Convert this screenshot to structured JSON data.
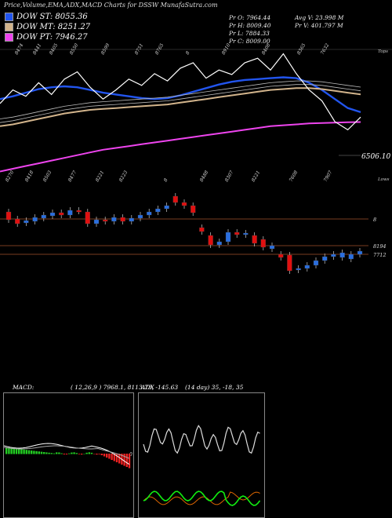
{
  "header": {
    "title": "Price,Volume,EMA,ADX,MACD Charts for DSSW MunafaSutra.com"
  },
  "legend": [
    {
      "label": "DOW ST: 8055.36",
      "color": "#2255ee"
    },
    {
      "label": "DOW MT: 8251.27",
      "color": "#d2b48c"
    },
    {
      "label": "DOW PT: 7946.27",
      "color": "#ee44ee"
    }
  ],
  "stats": {
    "pr_o": "Pr   O: 7964.44",
    "pr_h": "Pr   H: 8009.40",
    "pr_l": "Pr   L: 7884.33",
    "pr_c": "Pr   C: 8009.00",
    "avg_v": "Avg V: 23.998  M",
    "pr_v": "Pr   V: 401.797  M"
  },
  "top_labels": [
    "8474",
    "8441",
    "8405",
    "8550",
    "8599",
    "8751",
    "8765",
    "8",
    "8910",
    "8408",
    "8365",
    "7632"
  ],
  "lower_labels": [
    "8270",
    "8418",
    "8503",
    "8477",
    "8221",
    "8223",
    "8",
    "8488",
    "8307",
    "8221",
    "7608",
    "7907"
  ],
  "top_axis_label": "Tops",
  "lower_axis_label": "Lows",
  "price_label": "6506.10",
  "candle_levels": [
    "8",
    "8194",
    "7712"
  ],
  "chart_data": {
    "type": "line",
    "title": "Price,Volume,EMA,ADX,MACD Charts for DSSW MunafaSutra.com",
    "series": [
      {
        "name": "DOW ST: 8055.36",
        "color": "#2255ee",
        "values": [
          8200,
          8230,
          8270,
          8310,
          8330,
          8340,
          8330,
          8300,
          8270,
          8250,
          8230,
          8210,
          8200,
          8210,
          8240,
          8280,
          8320,
          8360,
          8390,
          8410,
          8420,
          8430,
          8440,
          8430,
          8380,
          8300,
          8200,
          8100,
          8055
        ]
      },
      {
        "name": "DOW MT: 8251.27",
        "color": "#d2b48c",
        "values": [
          7900,
          7920,
          7950,
          7980,
          8010,
          8040,
          8060,
          8080,
          8090,
          8100,
          8110,
          8120,
          8130,
          8140,
          8160,
          8180,
          8200,
          8220,
          8240,
          8260,
          8280,
          8300,
          8310,
          8320,
          8320,
          8310,
          8290,
          8270,
          8251
        ]
      },
      {
        "name": "DOW PT: 7946.27",
        "color": "#ee44ee",
        "values": [
          7400,
          7430,
          7460,
          7490,
          7520,
          7550,
          7580,
          7610,
          7640,
          7660,
          7680,
          7700,
          7720,
          7740,
          7760,
          7780,
          7800,
          7820,
          7840,
          7860,
          7880,
          7900,
          7910,
          7920,
          7930,
          7935,
          7940,
          7944,
          7946
        ]
      }
    ],
    "ohlc": [
      {
        "o": 8300,
        "c": 8200
      },
      {
        "o": 8210,
        "c": 8150
      },
      {
        "o": 8160,
        "c": 8190
      },
      {
        "o": 8180,
        "c": 8230
      },
      {
        "o": 8220,
        "c": 8260
      },
      {
        "o": 8250,
        "c": 8290
      },
      {
        "o": 8290,
        "c": 8260
      },
      {
        "o": 8260,
        "c": 8320
      },
      {
        "o": 8320,
        "c": 8310
      },
      {
        "o": 8300,
        "c": 8150
      },
      {
        "o": 8150,
        "c": 8200
      },
      {
        "o": 8200,
        "c": 8180
      },
      {
        "o": 8180,
        "c": 8230
      },
      {
        "o": 8230,
        "c": 8180
      },
      {
        "o": 8180,
        "c": 8220
      },
      {
        "o": 8220,
        "c": 8260
      },
      {
        "o": 8260,
        "c": 8300
      },
      {
        "o": 8300,
        "c": 8340
      },
      {
        "o": 8340,
        "c": 8380
      },
      {
        "o": 8500,
        "c": 8420
      },
      {
        "o": 8420,
        "c": 8380
      },
      {
        "o": 8380,
        "c": 8290
      },
      {
        "o": 8100,
        "c": 8050
      },
      {
        "o": 8000,
        "c": 7880
      },
      {
        "o": 7880,
        "c": 7920
      },
      {
        "o": 7920,
        "c": 8040
      },
      {
        "o": 8040,
        "c": 8010
      },
      {
        "o": 8010,
        "c": 8030
      },
      {
        "o": 8000,
        "c": 7900
      },
      {
        "o": 7950,
        "c": 7850
      },
      {
        "o": 7830,
        "c": 7870
      },
      {
        "o": 7760,
        "c": 7720
      },
      {
        "o": 7750,
        "c": 7550
      },
      {
        "o": 7560,
        "c": 7580
      },
      {
        "o": 7580,
        "c": 7620
      },
      {
        "o": 7620,
        "c": 7680
      },
      {
        "o": 7680,
        "c": 7730
      },
      {
        "o": 7730,
        "c": 7760
      },
      {
        "o": 7720,
        "c": 7780
      },
      {
        "o": 7700,
        "c": 7760
      },
      {
        "o": 7760,
        "c": 7800
      }
    ]
  },
  "macd": {
    "label": "MACD:",
    "params": "( 12,26,9 ) 7968.1, 8113.73, -145.63",
    "zero_label": "0"
  },
  "adx": {
    "label": "ADX",
    "params": "(14  day) 35, -18, 35"
  }
}
